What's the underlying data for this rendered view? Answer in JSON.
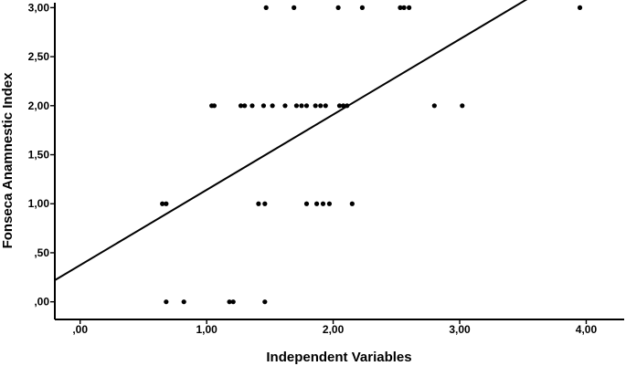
{
  "chart_data": {
    "type": "scatter",
    "xlabel": "Independent Variables",
    "ylabel": "Fonseca Anamnestic Index",
    "xlim": [
      -0.2,
      4.3
    ],
    "ylim": [
      -0.18,
      3.05
    ],
    "x_ticks": [
      0,
      1,
      2,
      3,
      4
    ],
    "x_tick_labels": [
      ",00",
      "1,00",
      "2,00",
      "3,00",
      "4,00"
    ],
    "y_ticks": [
      0,
      0.5,
      1,
      1.5,
      2,
      2.5,
      3
    ],
    "y_tick_labels": [
      ",00",
      ",50",
      "1,00",
      "1,50",
      "2,00",
      "2,50",
      "3,00"
    ],
    "grid": false,
    "legend": "none",
    "colors": {
      "points": "#000000",
      "line": "#000000",
      "axes": "#000000",
      "background": "#ffffff"
    },
    "fit_line": {
      "type": "linear",
      "points": [
        [
          -0.2,
          0.22
        ],
        [
          3.55,
          3.1
        ]
      ]
    },
    "points": [
      [
        0.65,
        1.0
      ],
      [
        0.68,
        1.0
      ],
      [
        0.68,
        0.0
      ],
      [
        0.82,
        0.0
      ],
      [
        1.18,
        0.0
      ],
      [
        1.21,
        0.0
      ],
      [
        1.46,
        0.0
      ],
      [
        1.04,
        2.0
      ],
      [
        1.06,
        2.0
      ],
      [
        1.27,
        2.0
      ],
      [
        1.3,
        2.0
      ],
      [
        1.36,
        2.0
      ],
      [
        1.45,
        2.0
      ],
      [
        1.52,
        2.0
      ],
      [
        1.62,
        2.0
      ],
      [
        1.71,
        2.0
      ],
      [
        1.75,
        2.0
      ],
      [
        1.79,
        2.0
      ],
      [
        1.86,
        2.0
      ],
      [
        1.9,
        2.0
      ],
      [
        1.94,
        2.0
      ],
      [
        2.05,
        2.0
      ],
      [
        2.08,
        2.0
      ],
      [
        2.11,
        2.0
      ],
      [
        1.41,
        1.0
      ],
      [
        1.46,
        1.0
      ],
      [
        1.79,
        1.0
      ],
      [
        1.87,
        1.0
      ],
      [
        1.92,
        1.0
      ],
      [
        1.97,
        1.0
      ],
      [
        2.15,
        1.0
      ],
      [
        1.47,
        3.0
      ],
      [
        1.69,
        3.0
      ],
      [
        2.04,
        3.0
      ],
      [
        2.23,
        3.0
      ],
      [
        2.53,
        3.0
      ],
      [
        2.56,
        3.0
      ],
      [
        2.6,
        3.0
      ],
      [
        3.95,
        3.0
      ],
      [
        2.8,
        2.0
      ],
      [
        3.02,
        2.0
      ]
    ]
  }
}
